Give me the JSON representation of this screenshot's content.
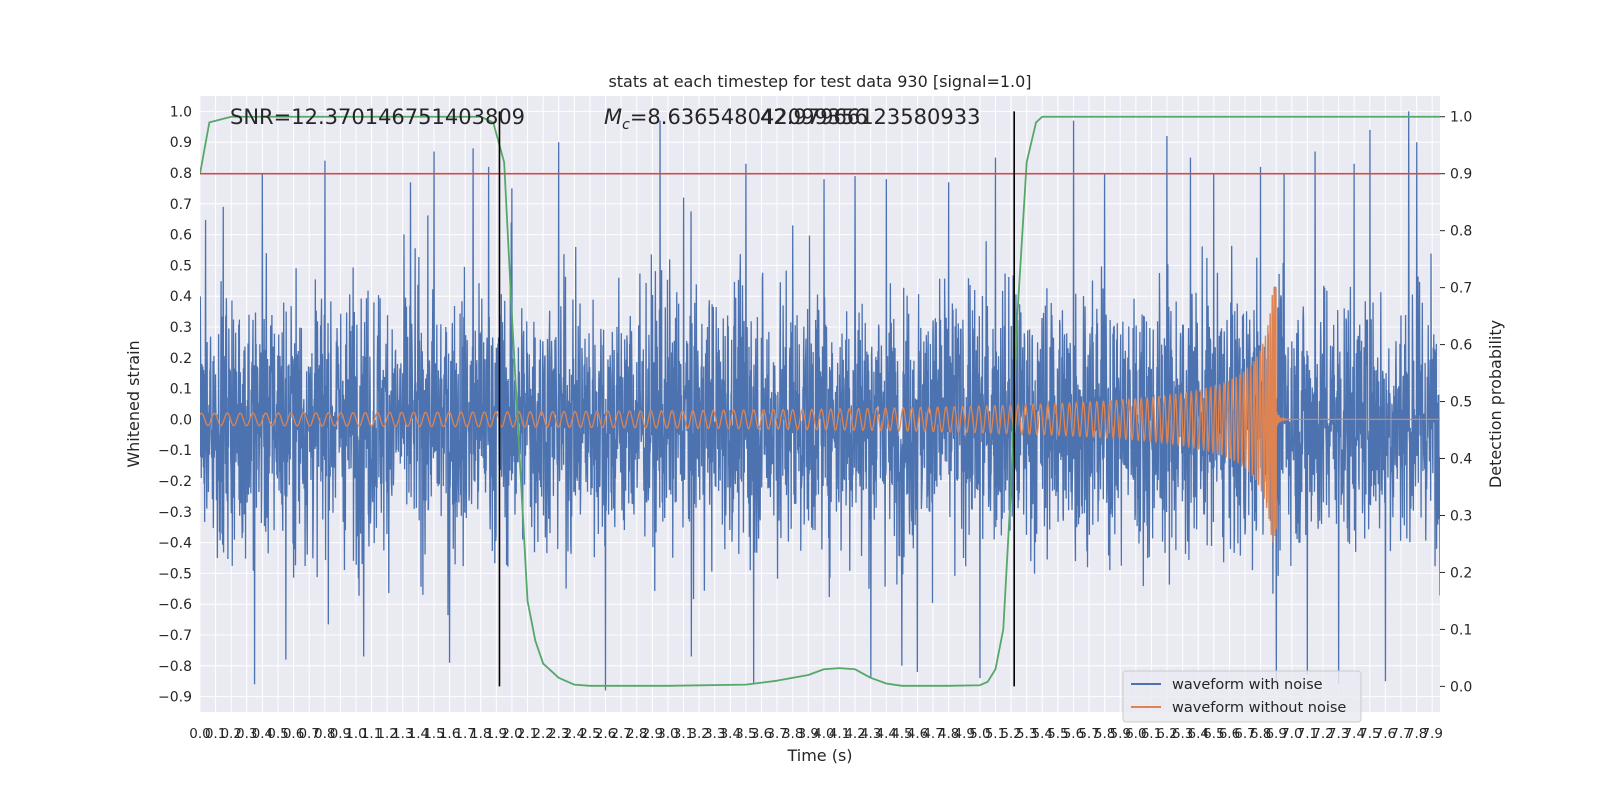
{
  "chart_data": {
    "type": "line",
    "title": "stats at each timestep for test data 930 [signal=1.0]",
    "xlabel": "Time (s)",
    "ylabel": "Whitened strain",
    "ylabel_right": "Detection probability",
    "xlim": [
      0.0,
      7.95
    ],
    "ylim": [
      -0.95,
      1.05
    ],
    "ylim_right": [
      -0.045,
      1.0364
    ],
    "x_ticks": [
      "0.0",
      "0.1",
      "0.2",
      "0.3",
      "0.4",
      "0.5",
      "0.6",
      "0.7",
      "0.8",
      "0.9",
      "1.0",
      "1.1",
      "1.2",
      "1.3",
      "1.4",
      "1.5",
      "1.6",
      "1.7",
      "1.8",
      "1.9",
      "2.0",
      "2.1",
      "2.2",
      "2.3",
      "2.4",
      "2.5",
      "2.6",
      "2.7",
      "2.8",
      "2.9",
      "3.0",
      "3.1",
      "3.2",
      "3.3",
      "3.4",
      "3.5",
      "3.6",
      "3.7",
      "3.8",
      "3.9",
      "4.0",
      "4.1",
      "4.2",
      "4.3",
      "4.4",
      "4.5",
      "4.6",
      "4.7",
      "4.8",
      "4.9",
      "5.0",
      "5.1",
      "5.2",
      "5.3",
      "5.4",
      "5.5",
      "5.6",
      "5.7",
      "5.8",
      "5.9",
      "6.0",
      "6.1",
      "6.2",
      "6.3",
      "6.4",
      "6.5",
      "6.6",
      "6.7",
      "6.8",
      "6.9",
      "7.0",
      "7.1",
      "7.2",
      "7.3",
      "7.4",
      "7.5",
      "7.6",
      "7.7",
      "7.8",
      "7.9"
    ],
    "y_ticks": [
      "1.0",
      "0.9",
      "0.8",
      "0.7",
      "0.6",
      "0.5",
      "0.4",
      "0.3",
      "0.2",
      "0.1",
      "0.0",
      "-0.1",
      "-0.2",
      "-0.3",
      "-0.4",
      "-0.5",
      "-0.6",
      "-0.7",
      "-0.8",
      "-0.9"
    ],
    "y_ticks_right": [
      "1.0",
      "0.9",
      "0.8",
      "0.7",
      "0.6",
      "0.5",
      "0.4",
      "0.3",
      "0.2",
      "0.1",
      "0.0"
    ],
    "annotations": {
      "snr": "SNR=12.370146751403809",
      "mc_symbol": "M",
      "mc_sub": "c",
      "mc_value": "=8.636548042099356",
      "mc_overlap": "42.97966123580933"
    },
    "vertical_lines_x": [
      1.92,
      5.22
    ],
    "threshold_right": 0.9,
    "legend": {
      "placement": "lower-right",
      "entries": [
        "waveform with noise",
        "waveform without noise"
      ]
    },
    "grid": true,
    "colors": {
      "noise": "#4c72b0",
      "clean": "#dd8452",
      "prob": "#55a868",
      "threshold": "#c44e52",
      "vline": "#000000",
      "bg": "#eaeaf2",
      "grid": "#ffffff"
    },
    "series": [
      {
        "name": "waveform with noise",
        "noise_spread": 0.5,
        "peak_values": [
          0.69,
          0.8,
          0.84,
          0.58,
          0.77,
          0.87,
          0.84,
          0.88,
          0.82,
          0.75,
          0.9,
          0.97,
          0.72,
          0.83,
          0.63,
          0.78,
          0.79,
          0.78,
          0.77,
          0.85,
          0.97,
          0.8,
          0.92,
          0.85,
          0.8,
          0.82,
          0.8,
          0.79,
          0.87,
          0.83,
          0.94,
          1.0,
          0.9
        ],
        "peak_x": [
          0.15,
          0.4,
          0.8,
          1.05,
          1.35,
          1.5,
          1.6,
          1.75,
          1.85,
          2.0,
          2.3,
          2.95,
          3.1,
          3.5,
          3.8,
          4.0,
          4.2,
          4.4,
          4.8,
          5.1,
          5.6,
          5.8,
          6.2,
          6.35,
          6.5,
          6.8,
          6.95,
          7.1,
          7.15,
          7.4,
          7.5,
          7.75,
          7.8
        ],
        "trough_values": [
          -0.86,
          -0.78,
          -0.77,
          -0.79,
          -0.88,
          -0.77,
          -0.86,
          -0.84,
          -0.8,
          -0.82,
          -0.84,
          -0.85,
          -0.83,
          -0.86,
          -0.85
        ],
        "trough_x": [
          0.35,
          0.55,
          1.05,
          1.6,
          2.6,
          3.15,
          3.55,
          4.3,
          4.5,
          4.6,
          5.0,
          6.9,
          7.1,
          7.3,
          7.6
        ]
      },
      {
        "name": "waveform without noise",
        "t_merger": 6.9,
        "amplitude_early": 0.02,
        "amplitude_peak": 0.43,
        "trough_peak": -0.36
      },
      {
        "name": "Detection probability",
        "axis": "right",
        "x": [
          0.0,
          0.06,
          0.2,
          0.5,
          1.0,
          1.5,
          1.8,
          1.88,
          1.95,
          2.0,
          2.05,
          2.1,
          2.15,
          2.2,
          2.3,
          2.4,
          2.5,
          2.6,
          3.0,
          3.5,
          3.7,
          3.9,
          4.0,
          4.1,
          4.2,
          4.3,
          4.4,
          4.5,
          4.8,
          5.0,
          5.05,
          5.1,
          5.15,
          5.2,
          5.24,
          5.3,
          5.36,
          5.4,
          5.5,
          6.0,
          7.0,
          7.95
        ],
        "y": [
          0.9,
          0.99,
          1.0,
          1.0,
          1.0,
          1.0,
          1.0,
          0.99,
          0.92,
          0.65,
          0.4,
          0.15,
          0.08,
          0.04,
          0.015,
          0.003,
          0.001,
          0.001,
          0.001,
          0.003,
          0.01,
          0.02,
          0.03,
          0.032,
          0.03,
          0.015,
          0.005,
          0.001,
          0.001,
          0.002,
          0.008,
          0.03,
          0.1,
          0.35,
          0.65,
          0.92,
          0.99,
          1.0,
          1.0,
          1.0,
          1.0,
          1.0
        ]
      }
    ]
  }
}
